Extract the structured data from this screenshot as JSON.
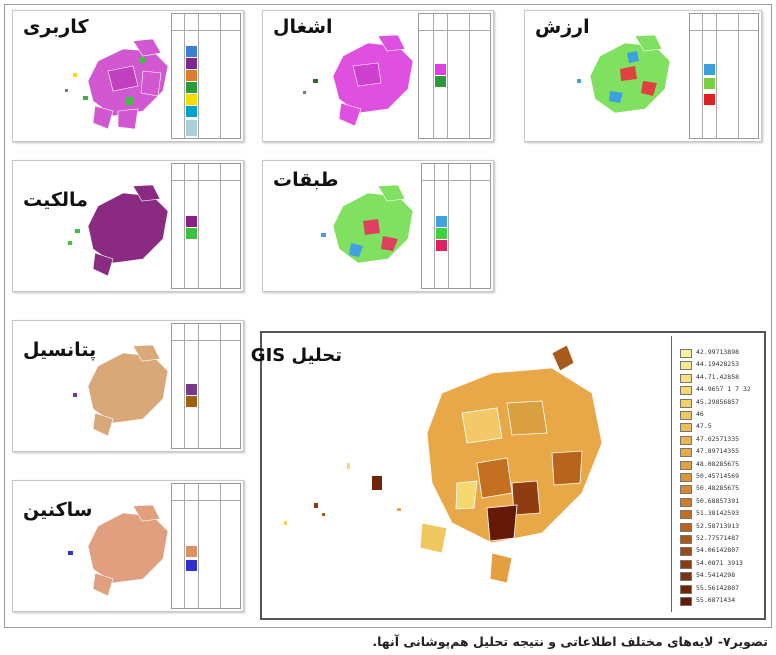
{
  "panels": {
    "karbari": {
      "title": "کاربری",
      "colors": [
        "#3d7fd6",
        "#7a2a8c",
        "#e07b2a",
        "#2a9a3a",
        "#f0e000",
        "#00a0d0",
        "#a8d0d8"
      ]
    },
    "eshteghal": {
      "title": "اشغال",
      "colors": [
        "#e040e0",
        "#2a9a3a"
      ]
    },
    "arzesh": {
      "title": "ارزش",
      "colors": [
        "#3aa0e0",
        "#7ad040",
        "#e02020"
      ]
    },
    "malekiyat": {
      "title": "مالکیت",
      "colors": [
        "#8a2080",
        "#40c040"
      ]
    },
    "tabaghat": {
      "title": "طبقات",
      "colors": [
        "#40a0e0",
        "#40d040",
        "#e02060"
      ]
    },
    "potansil": {
      "title": "پتانسیل",
      "colors": [
        "#7a3a8a",
        "#a06010"
      ]
    },
    "sakenin": {
      "title": "ساکنین",
      "colors": [
        "#e09060",
        "#3030d0"
      ]
    }
  },
  "gis": {
    "title": "تحلیل GIS",
    "legend": [
      {
        "label": "42.99713898",
        "color": "#f8f0a0"
      },
      {
        "label": "44.19428253",
        "color": "#f8e890"
      },
      {
        "label": "44.71.42858",
        "color": "#f6e080"
      },
      {
        "label": "44.9657 1 7 32",
        "color": "#f4d870"
      },
      {
        "label": "45.29856857",
        "color": "#f2d068"
      },
      {
        "label": "46",
        "color": "#f0c860"
      },
      {
        "label": "47.5",
        "color": "#eebe58"
      },
      {
        "label": "47.62571335",
        "color": "#ecb450"
      },
      {
        "label": "47.89714355",
        "color": "#e8aa48"
      },
      {
        "label": "48.08285675",
        "color": "#e4a040"
      },
      {
        "label": "50.45714569",
        "color": "#de9438"
      },
      {
        "label": "50.48285675",
        "color": "#d88830"
      },
      {
        "label": "50.68857391",
        "color": "#d07c28"
      },
      {
        "label": "51.38142593",
        "color": "#c47020"
      },
      {
        "label": "52.58713913",
        "color": "#b8641c"
      },
      {
        "label": "52.77571487",
        "color": "#aa5818"
      },
      {
        "label": "54.06142807",
        "color": "#9c4a14"
      },
      {
        "label": "54.0871 3913",
        "color": "#8e3c10"
      },
      {
        "label": "54.5414298",
        "color": "#80300c"
      },
      {
        "label": "55.56142807",
        "color": "#722408"
      },
      {
        "label": "55.6871434",
        "color": "#641a06"
      }
    ]
  },
  "caption": "تصویر۷- لایه‌های مختلف اطلاعاتی و نتیجه تحلیل هم‌پوشانی آنها."
}
